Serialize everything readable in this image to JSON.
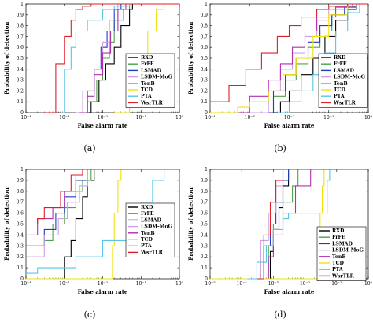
{
  "colors": {
    "RXD": "#000000",
    "FrFE": "#4aa34a",
    "LSMAD": "#1f3fbf",
    "LSDM-MoG": "#cfa0df",
    "TenB": "#b030b0",
    "TCD": "#f2e20a",
    "PTA": "#58c6e6",
    "WsrTLR": "#dd1e24"
  },
  "chart_data": [
    {
      "type": "line",
      "panel_label": "(a)",
      "xlabel": "False alarm rate",
      "ylabel": "Probability of detection",
      "xscale": "log",
      "xlim": [
        0.0001,
        1
      ],
      "ylim": [
        0,
        1
      ],
      "xticks": [
        "10⁻⁴",
        "10⁻³",
        "10⁻²",
        "10⁻¹",
        "10⁰"
      ],
      "yticks": [
        "0",
        "0.1",
        "0.2",
        "0.3",
        "0.4",
        "0.5",
        "0.6",
        "0.7",
        "0.8",
        "0.9",
        "1"
      ],
      "legend": [
        "RXD",
        "FrFE",
        "LSMAD",
        "LSDM-MoG",
        "TenB",
        "TCD",
        "PTA",
        "WsrTLR"
      ],
      "legend_position": "bottom-right",
      "grid": false,
      "series": [
        {
          "name": "RXD",
          "x": [
            0.003,
            0.005,
            0.008,
            0.012,
            0.02,
            0.03,
            0.05,
            0.06
          ],
          "y": [
            0,
            0.1,
            0.3,
            0.45,
            0.6,
            0.8,
            0.95,
            1
          ]
        },
        {
          "name": "FrFE",
          "x": [
            0.002,
            0.004,
            0.007,
            0.01,
            0.015,
            0.02,
            0.035,
            0.05
          ],
          "y": [
            0,
            0.1,
            0.3,
            0.5,
            0.65,
            0.85,
            0.95,
            1
          ]
        },
        {
          "name": "LSMAD",
          "x": [
            0.003,
            0.004,
            0.006,
            0.009,
            0.013,
            0.02,
            0.03
          ],
          "y": [
            0,
            0.2,
            0.4,
            0.6,
            0.75,
            0.95,
            1
          ]
        },
        {
          "name": "LSDM-MoG",
          "x": [
            0.002,
            0.003,
            0.006,
            0.01,
            0.015,
            0.025
          ],
          "y": [
            0,
            0.2,
            0.4,
            0.65,
            0.85,
            1
          ]
        },
        {
          "name": "TenB",
          "x": [
            0.0025,
            0.004,
            0.006,
            0.01,
            0.016,
            0.025,
            0.04
          ],
          "y": [
            0,
            0.15,
            0.35,
            0.55,
            0.75,
            0.95,
            1
          ]
        },
        {
          "name": "TCD",
          "x": [
            0.02,
            0.05,
            0.07,
            0.1,
            0.15,
            0.25,
            0.4
          ],
          "y": [
            0,
            0.1,
            0.3,
            0.5,
            0.75,
            0.95,
            1
          ]
        },
        {
          "name": "PTA",
          "x": [
            0.0008,
            0.001,
            0.0015,
            0.002,
            0.004,
            0.01,
            0.02,
            0.05
          ],
          "y": [
            0,
            0.4,
            0.6,
            0.75,
            0.85,
            0.95,
            0.98,
            1
          ]
        },
        {
          "name": "WsrTLR",
          "x": [
            0.0003,
            0.0006,
            0.001,
            0.0015,
            0.002,
            0.003,
            0.005
          ],
          "y": [
            0,
            0.45,
            0.7,
            0.85,
            0.95,
            0.98,
            1
          ]
        }
      ]
    },
    {
      "type": "line",
      "panel_label": "(b)",
      "xlabel": "False alarm rate",
      "ylabel": "Probability of detection",
      "xscale": "log",
      "xlim": [
        0.0001,
        1
      ],
      "ylim": [
        0,
        1
      ],
      "xticks": [
        "10⁻⁴",
        "10⁻³",
        "10⁻²",
        "10⁻¹",
        "10⁰"
      ],
      "yticks": [
        "0",
        "0.1",
        "0.2",
        "0.3",
        "0.4",
        "0.5",
        "0.6",
        "0.7",
        "0.8",
        "0.9",
        "1"
      ],
      "legend": [
        "RXD",
        "FrFE",
        "LSMAD",
        "LSDM-MoG",
        "TenB",
        "TCD",
        "PTA",
        "WsrTLR"
      ],
      "legend_position": "bottom-right",
      "grid": false,
      "series": [
        {
          "name": "RXD",
          "x": [
            0.003,
            0.006,
            0.01,
            0.02,
            0.04,
            0.08,
            0.15,
            0.3,
            0.5
          ],
          "y": [
            0,
            0.1,
            0.2,
            0.35,
            0.5,
            0.7,
            0.85,
            0.95,
            1
          ]
        },
        {
          "name": "FrFE",
          "x": [
            0.002,
            0.004,
            0.008,
            0.015,
            0.03,
            0.06,
            0.12,
            0.3,
            0.5
          ],
          "y": [
            0,
            0.15,
            0.3,
            0.45,
            0.6,
            0.75,
            0.9,
            0.98,
            1
          ]
        },
        {
          "name": "LSMAD",
          "x": [
            0.002,
            0.004,
            0.008,
            0.015,
            0.03,
            0.06,
            0.12,
            0.25,
            0.5
          ],
          "y": [
            0,
            0.2,
            0.35,
            0.5,
            0.65,
            0.8,
            0.9,
            0.97,
            1
          ]
        },
        {
          "name": "LSDM-MoG",
          "x": [
            0.001,
            0.003,
            0.006,
            0.012,
            0.025,
            0.05,
            0.1,
            0.3
          ],
          "y": [
            0,
            0.2,
            0.4,
            0.55,
            0.7,
            0.85,
            0.95,
            1
          ]
        },
        {
          "name": "TenB",
          "x": [
            0.0005,
            0.001,
            0.003,
            0.006,
            0.012,
            0.025,
            0.05,
            0.15,
            0.4
          ],
          "y": [
            0,
            0.15,
            0.3,
            0.45,
            0.6,
            0.75,
            0.88,
            0.97,
            1
          ]
        },
        {
          "name": "TCD",
          "x": [
            0.0001,
            0.0005,
            0.001,
            0.003,
            0.007,
            0.015,
            0.04,
            0.1,
            0.3
          ],
          "y": [
            0,
            0.05,
            0.1,
            0.2,
            0.35,
            0.5,
            0.7,
            0.9,
            1
          ]
        },
        {
          "name": "PTA",
          "x": [
            0.005,
            0.01,
            0.02,
            0.04,
            0.08,
            0.15,
            0.3,
            0.6
          ],
          "y": [
            0,
            0.1,
            0.2,
            0.35,
            0.55,
            0.75,
            0.92,
            1
          ]
        },
        {
          "name": "WsrTLR",
          "x": [
            0.0001,
            0.0003,
            0.0008,
            0.002,
            0.005,
            0.01,
            0.02,
            0.05,
            0.1,
            0.3
          ],
          "y": [
            0.1,
            0.25,
            0.4,
            0.55,
            0.7,
            0.8,
            0.88,
            0.95,
            0.98,
            1
          ]
        }
      ]
    },
    {
      "type": "line",
      "panel_label": "(c)",
      "xlabel": "False alarm rate",
      "ylabel": "Probability of detection",
      "xscale": "log",
      "xlim": [
        0.0001,
        1
      ],
      "ylim": [
        0,
        1
      ],
      "xticks": [
        "10⁻⁴",
        "10⁻³",
        "10⁻²",
        "10⁻¹",
        "10⁰"
      ],
      "yticks": [
        "0",
        "0.1",
        "0.2",
        "0.3",
        "0.4",
        "0.5",
        "0.6",
        "0.7",
        "0.8",
        "0.9",
        "1"
      ],
      "legend": [
        "RXD",
        "FrFE",
        "LSMAD",
        "LSDM-MoG",
        "TenB",
        "TCD",
        "PTA",
        "WsrTLR"
      ],
      "legend_position": "right",
      "grid": false,
      "series": [
        {
          "name": "RXD",
          "x": [
            0.0007,
            0.001,
            0.0015,
            0.002,
            0.003,
            0.004,
            0.006
          ],
          "y": [
            0,
            0.2,
            0.35,
            0.55,
            0.75,
            0.9,
            1
          ]
        },
        {
          "name": "FrFE",
          "x": [
            0.0003,
            0.0005,
            0.001,
            0.002,
            0.003,
            0.005
          ],
          "y": [
            0.35,
            0.5,
            0.65,
            0.8,
            0.9,
            1
          ]
        },
        {
          "name": "LSMAD",
          "x": [
            0.0001,
            0.0003,
            0.0006,
            0.001,
            0.002,
            0.004
          ],
          "y": [
            0.3,
            0.45,
            0.6,
            0.75,
            0.9,
            1
          ]
        },
        {
          "name": "LSDM-MoG",
          "x": [
            0.0001,
            0.0003,
            0.0007,
            0.0012,
            0.0025,
            0.004
          ],
          "y": [
            0.2,
            0.4,
            0.55,
            0.7,
            0.85,
            1
          ]
        },
        {
          "name": "TenB",
          "x": [
            0.0001,
            0.0002,
            0.0005,
            0.001,
            0.002,
            0.003
          ],
          "y": [
            0.4,
            0.55,
            0.65,
            0.8,
            0.95,
            1
          ]
        },
        {
          "name": "TCD",
          "x": [
            0.0001,
            0.015,
            0.018,
            0.02,
            0.025,
            0.03
          ],
          "y": [
            0,
            0,
            0.3,
            0.6,
            0.9,
            1
          ]
        },
        {
          "name": "PTA",
          "x": [
            0.0001,
            0.0002,
            0.002,
            0.01,
            0.05,
            0.1,
            0.2,
            0.4
          ],
          "y": [
            0.05,
            0.1,
            0.2,
            0.35,
            0.55,
            0.7,
            0.9,
            1
          ]
        },
        {
          "name": "WsrTLR",
          "x": [
            0.0001,
            0.0002,
            0.0003,
            0.0008,
            0.0015,
            0.003
          ],
          "y": [
            0.5,
            0.55,
            0.65,
            0.8,
            0.95,
            1
          ]
        }
      ]
    },
    {
      "type": "line",
      "panel_label": "(d)",
      "xlabel": "False alarm rate",
      "ylabel": "Probability of detection",
      "xscale": "log",
      "xlim": [
        1e-05,
        1
      ],
      "ylim": [
        0,
        1
      ],
      "xticks": [
        "10⁻⁵",
        "10⁻⁴",
        "10⁻³",
        "10⁻²",
        "10⁻¹",
        "10⁰"
      ],
      "yticks": [
        "0",
        "0.1",
        "0.2",
        "0.3",
        "0.4",
        "0.5",
        "0.6",
        "0.7",
        "0.8",
        "0.9",
        "1"
      ],
      "legend": [
        "RXD",
        "FrFE",
        "LSMAD",
        "LSDM-MoG",
        "TenB",
        "TCD",
        "PTA",
        "WsrTLR"
      ],
      "legend_position": "bottom-right",
      "grid": false,
      "series": [
        {
          "name": "RXD",
          "x": [
            0.0005,
            0.0008,
            0.001,
            0.0015,
            0.002,
            0.003
          ],
          "y": [
            0,
            0.25,
            0.45,
            0.65,
            0.85,
            1
          ]
        },
        {
          "name": "FrFE",
          "x": [
            0.0004,
            0.0007,
            0.001,
            0.002,
            0.004,
            0.006
          ],
          "y": [
            0,
            0.3,
            0.5,
            0.7,
            0.85,
            1
          ]
        },
        {
          "name": "LSMAD",
          "x": [
            0.0003,
            0.0005,
            0.0008,
            0.0012,
            0.002,
            0.003
          ],
          "y": [
            0,
            0.3,
            0.5,
            0.7,
            0.9,
            1
          ]
        },
        {
          "name": "LSDM-MoG",
          "x": [
            0.0002,
            0.0004,
            0.0007,
            0.0012,
            0.002
          ],
          "y": [
            0,
            0.35,
            0.6,
            0.85,
            1
          ]
        },
        {
          "name": "TenB",
          "x": [
            0.0004,
            0.0007,
            0.001,
            0.002,
            0.005,
            0.015
          ],
          "y": [
            0,
            0.2,
            0.4,
            0.6,
            0.85,
            1
          ]
        },
        {
          "name": "TCD",
          "x": [
            1e-05,
            0.02,
            0.025,
            0.03,
            0.035,
            0.04
          ],
          "y": [
            0,
            0,
            0.3,
            0.6,
            0.85,
            1
          ]
        },
        {
          "name": "PTA",
          "x": [
            0.00015,
            0.0003,
            0.0006,
            0.001,
            0.002,
            0.003,
            0.05,
            0.06
          ],
          "y": [
            0,
            0.15,
            0.3,
            0.45,
            0.55,
            0.6,
            0.9,
            1
          ]
        },
        {
          "name": "WsrTLR",
          "x": [
            0.0003,
            0.0005,
            0.0008,
            0.0012,
            0.002
          ],
          "y": [
            0,
            0.4,
            0.7,
            0.9,
            1
          ]
        }
      ]
    }
  ]
}
